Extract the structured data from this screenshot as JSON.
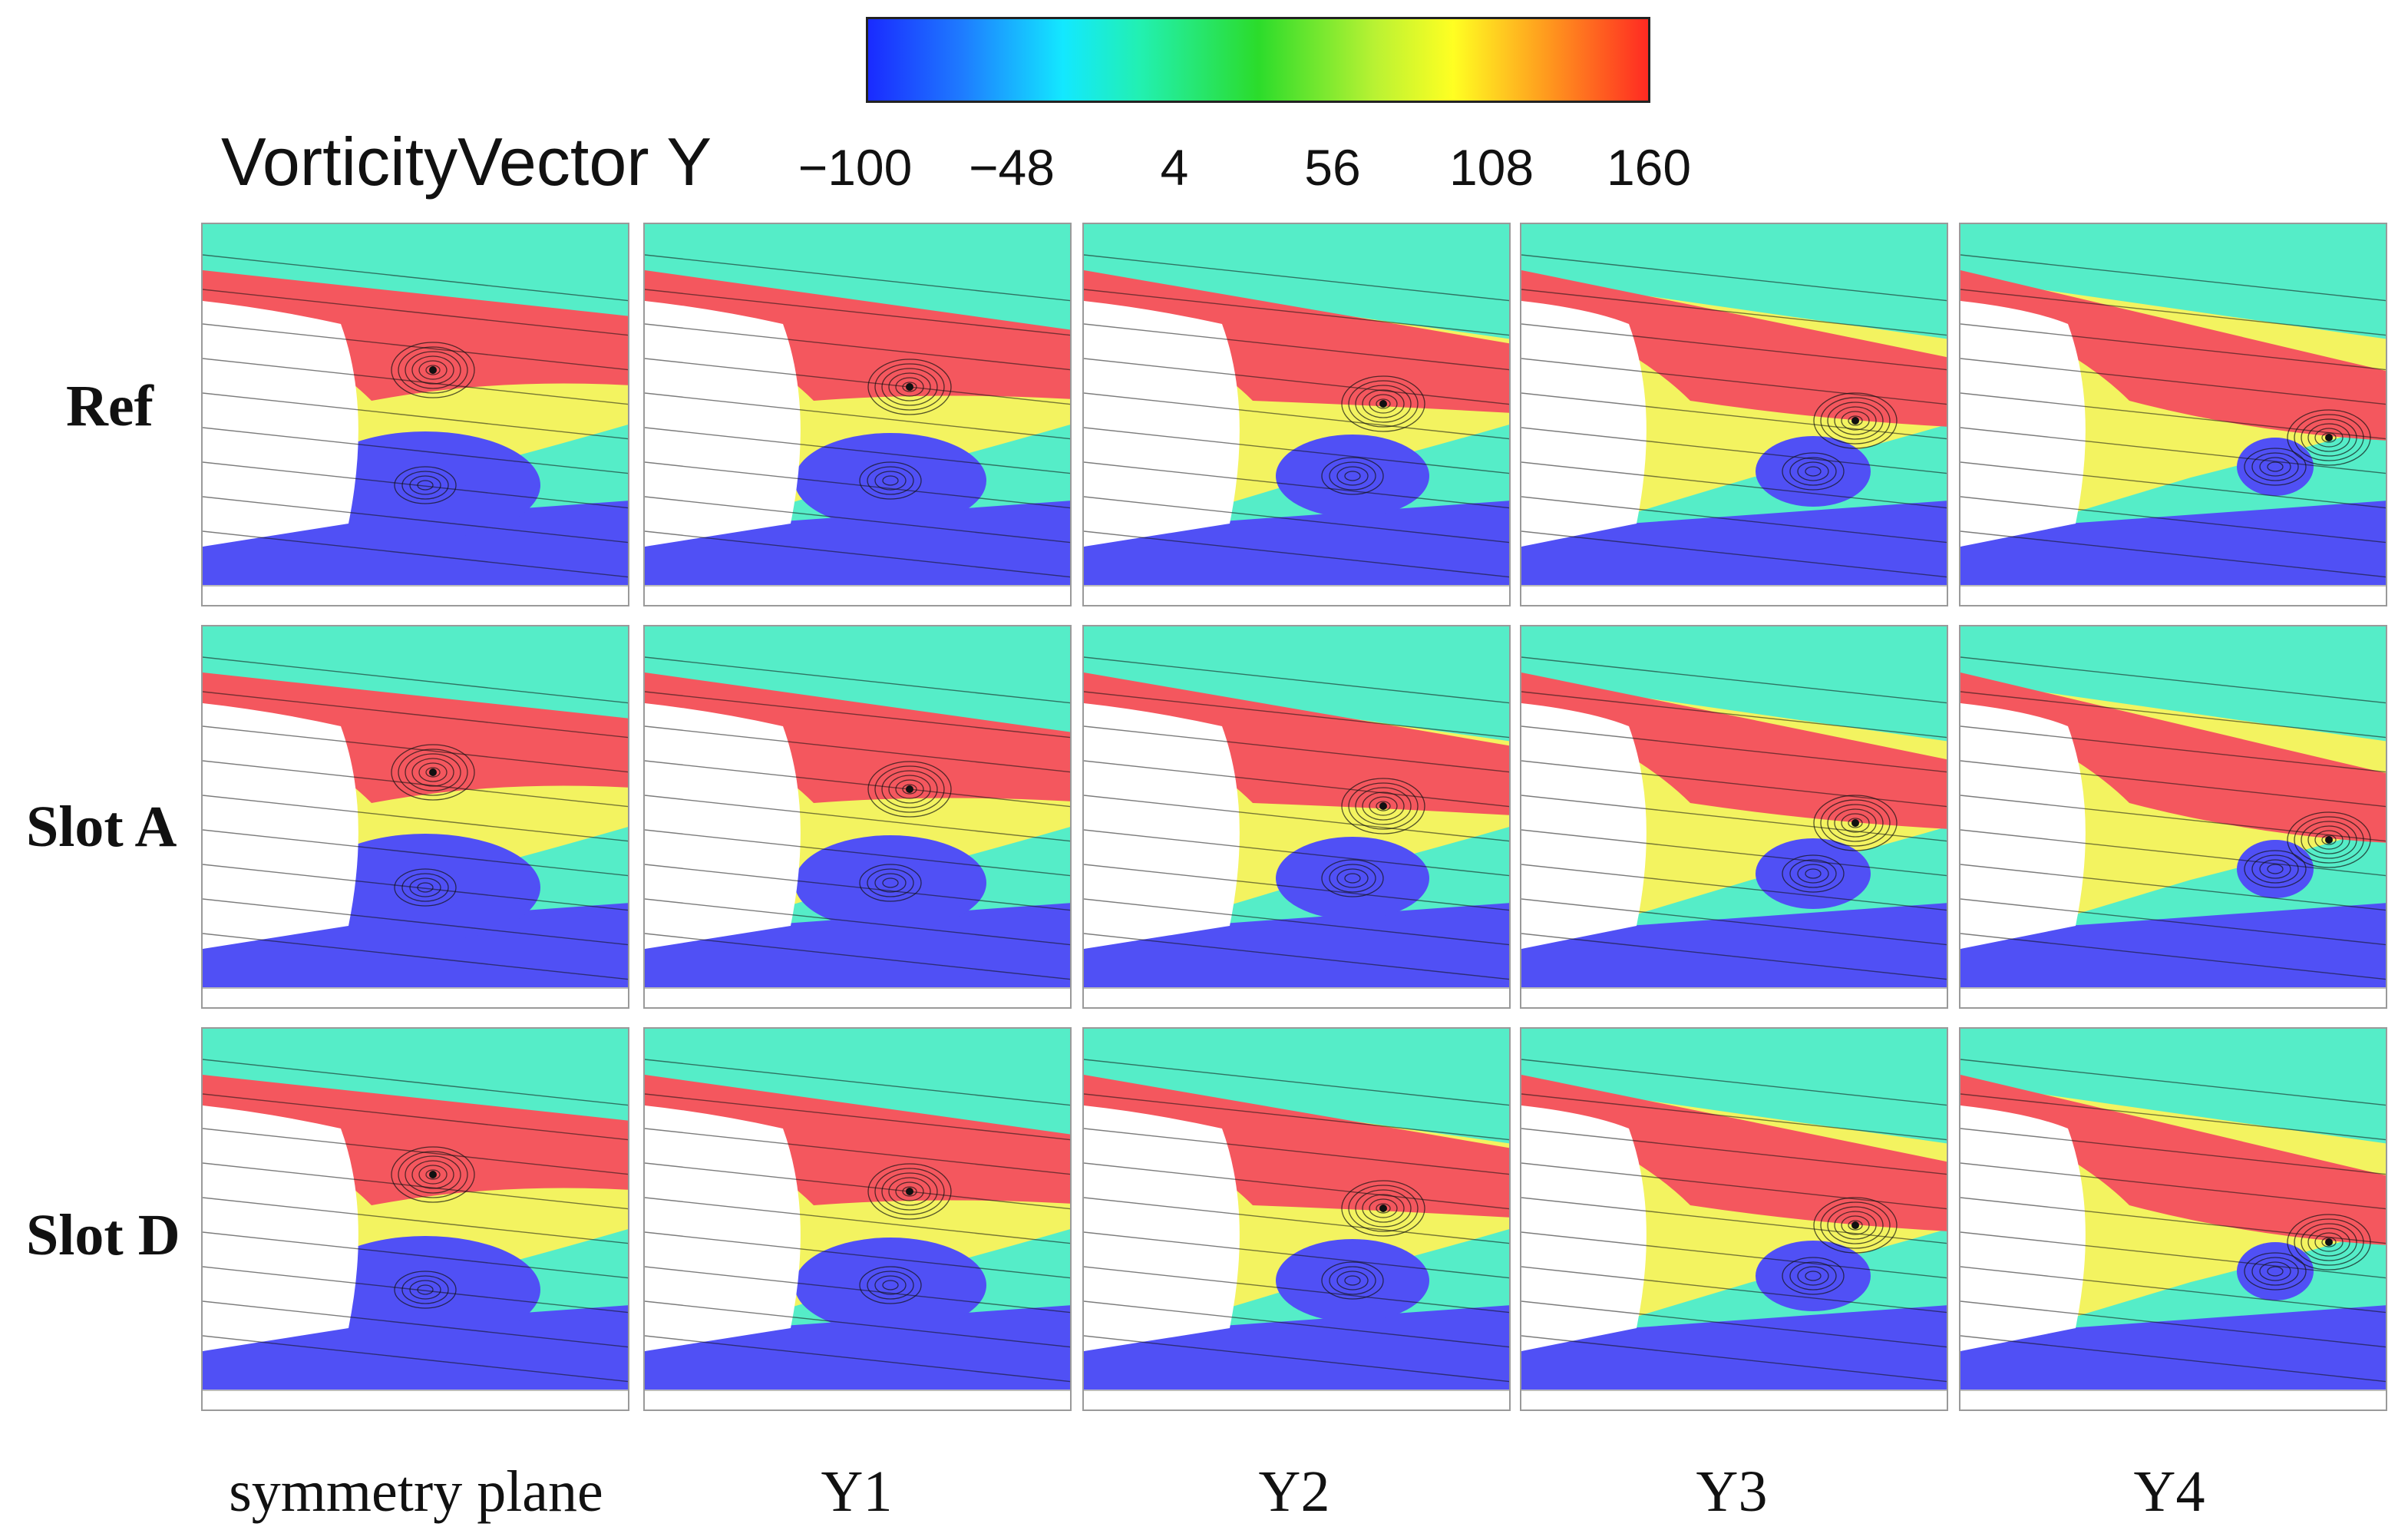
{
  "colorbar": {
    "title": "VorticityVector Y",
    "ticks": [
      "−100",
      "−48",
      "4",
      "56",
      "108",
      "160"
    ],
    "colors": [
      "#1a2bff",
      "#13e8ff",
      "#2bdc2b",
      "#ffff22",
      "#ff2a22"
    ]
  },
  "rows": [
    "Ref",
    "Slot A",
    "Slot D"
  ],
  "columns": [
    "symmetry plane",
    "Y1",
    "Y2",
    "Y3",
    "Y4"
  ],
  "field_colors": {
    "free_stream": "#55edc8",
    "positive_shear": "#f4575e",
    "negative_recirc": "#5050f5",
    "transition": "#f3f360",
    "streamline": "#111111"
  }
}
